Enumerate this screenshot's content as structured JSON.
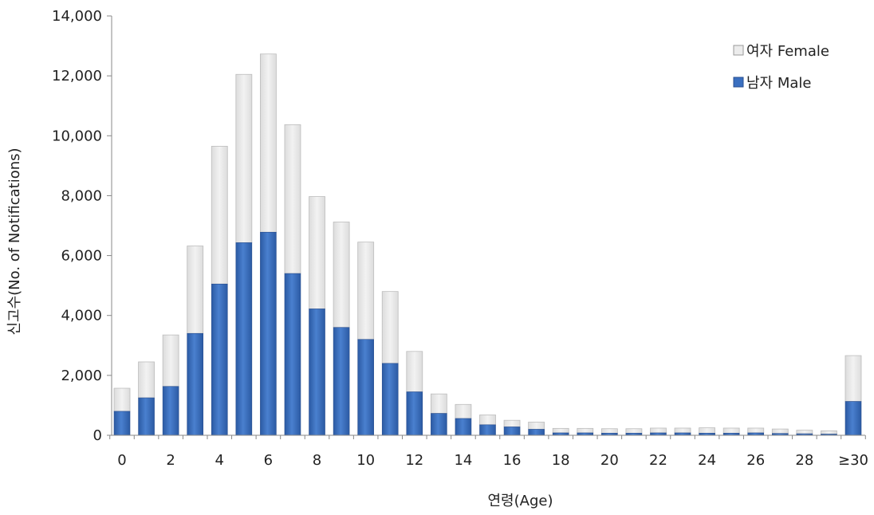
{
  "chart_data": {
    "type": "bar",
    "stacked": true,
    "xlabel": "연령(Age)",
    "ylabel": "신고수(No. of Notifications)",
    "ylim": [
      0,
      14000
    ],
    "yticks": [
      0,
      2000,
      4000,
      6000,
      8000,
      10000,
      12000,
      14000
    ],
    "ytick_labels": [
      "0",
      "2,000",
      "4,000",
      "6,000",
      "8,000",
      "10,000",
      "12,000",
      "14,000"
    ],
    "grid": false,
    "legend_position": "top-right",
    "categories": [
      "0",
      "1",
      "2",
      "3",
      "4",
      "5",
      "6",
      "7",
      "8",
      "9",
      "10",
      "11",
      "12",
      "13",
      "14",
      "15",
      "16",
      "17",
      "18",
      "19",
      "20",
      "21",
      "22",
      "23",
      "24",
      "25",
      "26",
      "27",
      "28",
      "29",
      "≥30"
    ],
    "xtick_labels": [
      "0",
      "",
      "2",
      "",
      "4",
      "",
      "6",
      "",
      "8",
      "",
      "10",
      "",
      "12",
      "",
      "14",
      "",
      "16",
      "",
      "18",
      "",
      "20",
      "",
      "22",
      "",
      "24",
      "",
      "26",
      "",
      "28",
      "",
      "≥30"
    ],
    "series": [
      {
        "name": "남자 Male",
        "color": "#3a6fc0",
        "values": [
          800,
          1250,
          1630,
          3400,
          5050,
          6430,
          6780,
          5400,
          4220,
          3600,
          3200,
          2400,
          1450,
          730,
          560,
          350,
          280,
          200,
          80,
          80,
          70,
          70,
          80,
          80,
          70,
          70,
          80,
          60,
          50,
          40,
          1130
        ]
      },
      {
        "name": "여자 Female",
        "color": "#ececec",
        "values": [
          770,
          1200,
          1720,
          2920,
          4600,
          5620,
          5950,
          4970,
          3750,
          3520,
          3250,
          2400,
          1350,
          650,
          470,
          330,
          220,
          240,
          150,
          150,
          150,
          150,
          160,
          160,
          180,
          170,
          160,
          150,
          120,
          110,
          1530
        ]
      }
    ]
  }
}
